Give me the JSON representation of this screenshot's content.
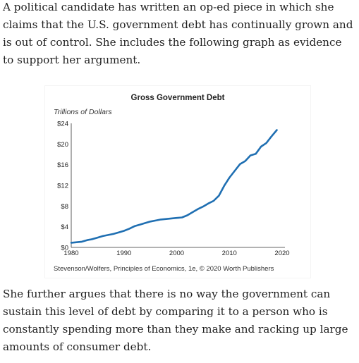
{
  "intro_paragraph": "A political candidate has written an op-ed piece in which she claims that the U.S. government debt has continually grown and is out of control. She includes the following graph as evidence to support her argument.",
  "closing_paragraph": "She further argues that there is no way the government can sustain this level of debt by comparing it to a person who is constantly spending more than they make and racking up large amounts of consumer debt.",
  "chart_data": {
    "type": "line",
    "title": "Gross Government Debt",
    "ylabel": "Trillions of Dollars",
    "xlabel": "",
    "source": "Stevenson/Wolfers, Principles of Economics, 1e, © 2020 Worth Publishers",
    "xlim": [
      1980,
      2020
    ],
    "ylim": [
      0,
      24
    ],
    "x_ticks": [
      "1980",
      "1990",
      "2000",
      "2010",
      "2020"
    ],
    "y_ticks": [
      "$0",
      "$4",
      "$8",
      "$12",
      "$16",
      "$20",
      "$24"
    ],
    "grid": false,
    "line_color": "#1f6fb2",
    "series": [
      {
        "x": [
          1980,
          1981,
          1982,
          1983,
          1984,
          1985,
          1986,
          1987,
          1988,
          1989,
          1990,
          1991,
          1992,
          1993,
          1994,
          1995,
          1996,
          1997,
          1998,
          1999,
          2000,
          2001,
          2002,
          2003,
          2004,
          2005,
          2006,
          2007,
          2008,
          2009,
          2010,
          2011,
          2012,
          2013,
          2014,
          2015,
          2016,
          2017,
          2018,
          2019
        ],
        "y": [
          0.9,
          1.0,
          1.1,
          1.4,
          1.6,
          1.9,
          2.2,
          2.4,
          2.6,
          2.9,
          3.2,
          3.6,
          4.1,
          4.4,
          4.7,
          5.0,
          5.2,
          5.4,
          5.5,
          5.6,
          5.7,
          5.8,
          6.2,
          6.8,
          7.4,
          7.9,
          8.5,
          9.0,
          10.0,
          11.9,
          13.5,
          14.8,
          16.1,
          16.7,
          17.8,
          18.1,
          19.5,
          20.2,
          21.5,
          22.7
        ]
      }
    ]
  }
}
